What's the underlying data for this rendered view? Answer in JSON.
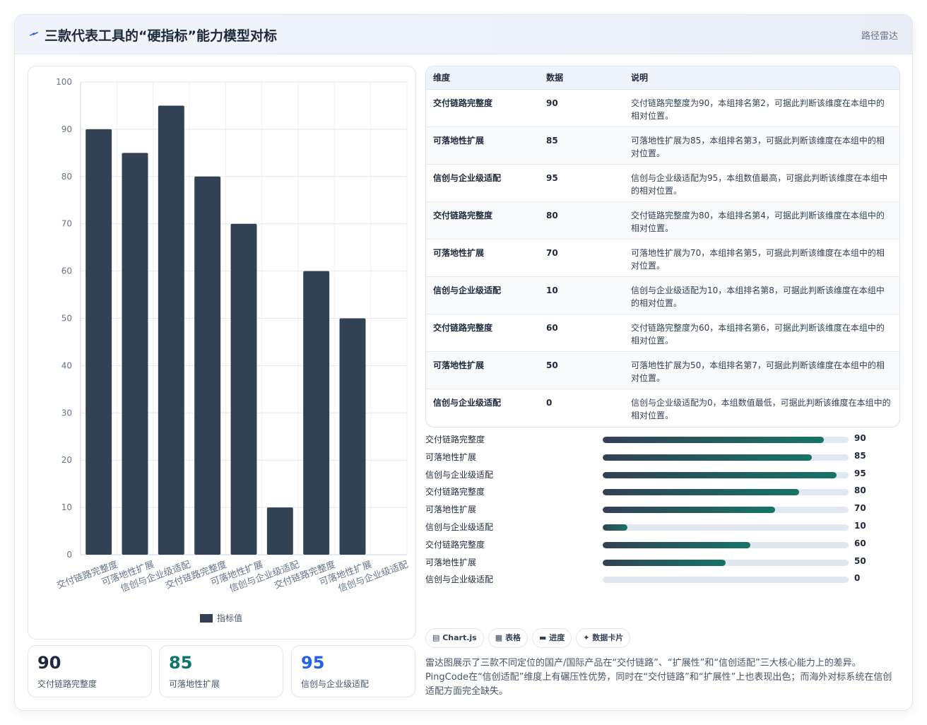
{
  "header": {
    "title": "三款代表工具的“硬指标”能力模型对标",
    "tag": "路径雷达"
  },
  "chart_data": {
    "type": "bar",
    "categories": [
      "交付链路完整度",
      "可落地性扩展",
      "信创与企业级适配",
      "交付链路完整度",
      "可落地性扩展",
      "信创与企业级适配",
      "交付链路完整度",
      "可落地性扩展",
      "信创与企业级适配"
    ],
    "series": [
      {
        "name": "指标值",
        "values": [
          90,
          85,
          95,
          80,
          70,
          10,
          60,
          50,
          0
        ]
      }
    ],
    "ylim": [
      0,
      100
    ],
    "yticks": [
      0,
      10,
      20,
      30,
      40,
      50,
      60,
      70,
      80,
      90,
      100
    ],
    "grid": true,
    "legend_position": "bottom",
    "colors": {
      "bar": "#334155"
    }
  },
  "stats": [
    {
      "value": "90",
      "label": "交付链路完整度",
      "color": "#1e293b"
    },
    {
      "value": "85",
      "label": "可落地性扩展",
      "color": "#0f766e"
    },
    {
      "value": "95",
      "label": "信创与企业级适配",
      "color": "#2563eb"
    }
  ],
  "table": {
    "headers": [
      "维度",
      "数据",
      "说明"
    ],
    "rows": [
      {
        "dimension": "交付链路完整度",
        "value": "90",
        "desc": "交付链路完整度为90，本组排名第2，可据此判断该维度在本组中的相对位置。"
      },
      {
        "dimension": "可落地性扩展",
        "value": "85",
        "desc": "可落地性扩展为85，本组排名第3，可据此判断该维度在本组中的相对位置。"
      },
      {
        "dimension": "信创与企业级适配",
        "value": "95",
        "desc": "信创与企业级适配为95，本组数值最高，可据此判断该维度在本组中的相对位置。"
      },
      {
        "dimension": "交付链路完整度",
        "value": "80",
        "desc": "交付链路完整度为80，本组排名第4，可据此判断该维度在本组中的相对位置。"
      },
      {
        "dimension": "可落地性扩展",
        "value": "70",
        "desc": "可落地性扩展为70，本组排名第5，可据此判断该维度在本组中的相对位置。"
      },
      {
        "dimension": "信创与企业级适配",
        "value": "10",
        "desc": "信创与企业级适配为10，本组排名第8，可据此判断该维度在本组中的相对位置。"
      },
      {
        "dimension": "交付链路完整度",
        "value": "60",
        "desc": "交付链路完整度为60，本组排名第6，可据此判断该维度在本组中的相对位置。"
      },
      {
        "dimension": "可落地性扩展",
        "value": "50",
        "desc": "可落地性扩展为50，本组排名第7，可据此判断该维度在本组中的相对位置。"
      },
      {
        "dimension": "信创与企业级适配",
        "value": "0",
        "desc": "信创与企业级适配为0，本组数值最低，可据此判断该维度在本组中的相对位置。"
      }
    ]
  },
  "progress": [
    {
      "label": "交付链路完整度",
      "value": 90
    },
    {
      "label": "可落地性扩展",
      "value": 85
    },
    {
      "label": "信创与企业级适配",
      "value": 95
    },
    {
      "label": "交付链路完整度",
      "value": 80
    },
    {
      "label": "可落地性扩展",
      "value": 70
    },
    {
      "label": "信创与企业级适配",
      "value": 10
    },
    {
      "label": "交付链路完整度",
      "value": 60
    },
    {
      "label": "可落地性扩展",
      "value": 50
    },
    {
      "label": "信创与企业级适配",
      "value": 0
    }
  ],
  "chips": [
    "▤ Chart.js",
    "▦ 表格",
    "▬ 进度",
    "✦ 数据卡片"
  ],
  "note": "雷达图展示了三款不同定位的国产/国际产品在“交付链路”、“扩展性”和“信创适配”三大核心能力上的差异。PingCode在“信创适配”维度上有碾压性优势，同时在“交付链路”和“扩展性”上也表现出色；而海外对标系统在信创适配方面完全缺失。"
}
